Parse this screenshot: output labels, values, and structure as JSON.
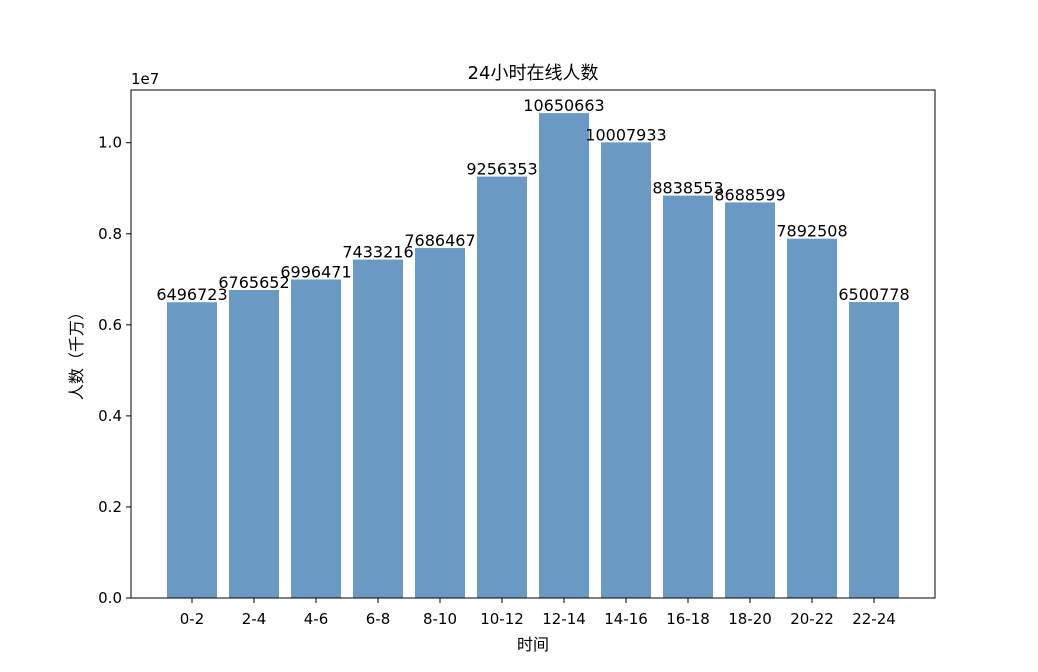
{
  "chart_data": {
    "type": "bar",
    "title": "24小时在线人数",
    "xlabel": "时间",
    "ylabel": "人数（千万）",
    "offset_text": "1e7",
    "categories": [
      "0-2",
      "2-4",
      "4-6",
      "6-8",
      "8-10",
      "10-12",
      "12-14",
      "14-16",
      "16-18",
      "18-20",
      "20-22",
      "22-24"
    ],
    "values": [
      6496723,
      6765652,
      6996471,
      7433216,
      7686467,
      9256353,
      10650663,
      10007933,
      8838553,
      8688599,
      7892508,
      6500778
    ],
    "data_labels": [
      "6496723",
      "6765652",
      "6996471",
      "7433216",
      "7686467",
      "9256353",
      "10650663",
      "10007933",
      "8838553",
      "8688599",
      "7892508",
      "6500778"
    ],
    "yticks": [
      0,
      2000000,
      4000000,
      6000000,
      8000000,
      10000000
    ],
    "ytick_labels": [
      "0.0",
      "0.2",
      "0.4",
      "0.6",
      "0.8",
      "1.0"
    ],
    "ylim": [
      0,
      11158000
    ],
    "bar_color": "#6a9ac3",
    "grid": false,
    "legend": "none"
  }
}
